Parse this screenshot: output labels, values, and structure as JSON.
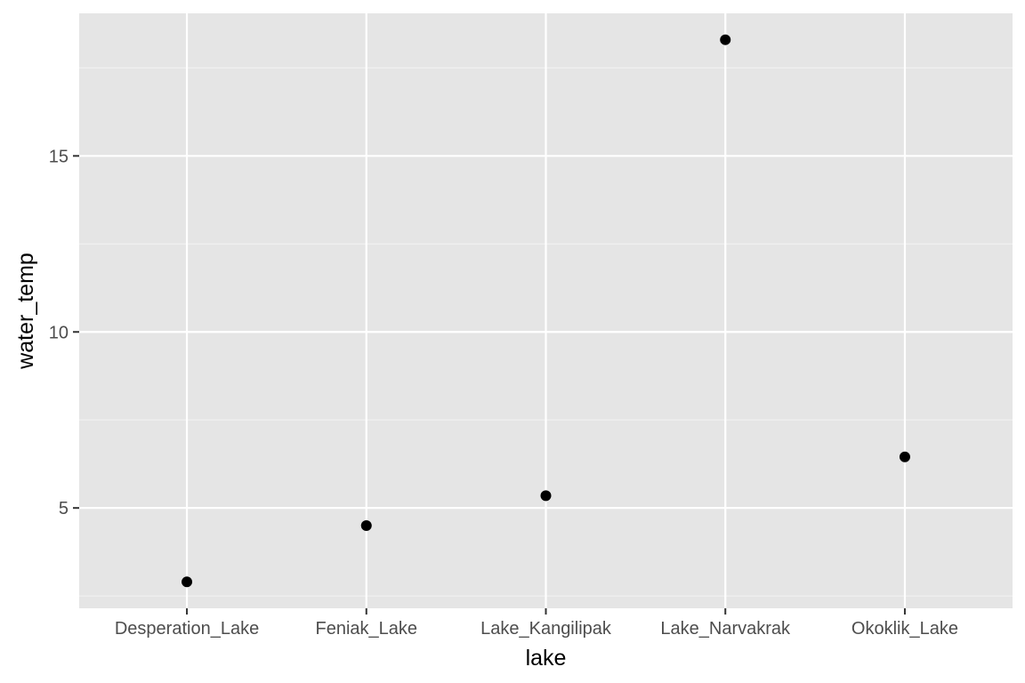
{
  "chart_data": {
    "type": "scatter",
    "title": "",
    "xlabel": "lake",
    "ylabel": "water_temp",
    "categories": [
      "Desperation_Lake",
      "Feniak_Lake",
      "Lake_Kangilipak",
      "Lake_Narvakrak",
      "Okoklik_Lake"
    ],
    "values": [
      2.9,
      4.5,
      5.35,
      18.3,
      6.45
    ],
    "ylim": [
      2.15,
      19.05
    ],
    "yticks": [
      5,
      10,
      15
    ],
    "ytick_labels": [
      "5",
      "10",
      "15"
    ],
    "grid": true,
    "legend": "none",
    "colors": {
      "panel_background": "#e5e5e5",
      "grid_major": "#ffffff",
      "grid_minor": "#f2f2f2",
      "point": "#000000",
      "tick_text": "#4d4d4d",
      "tick_mark": "#333333",
      "axis_title": "#000000"
    }
  }
}
